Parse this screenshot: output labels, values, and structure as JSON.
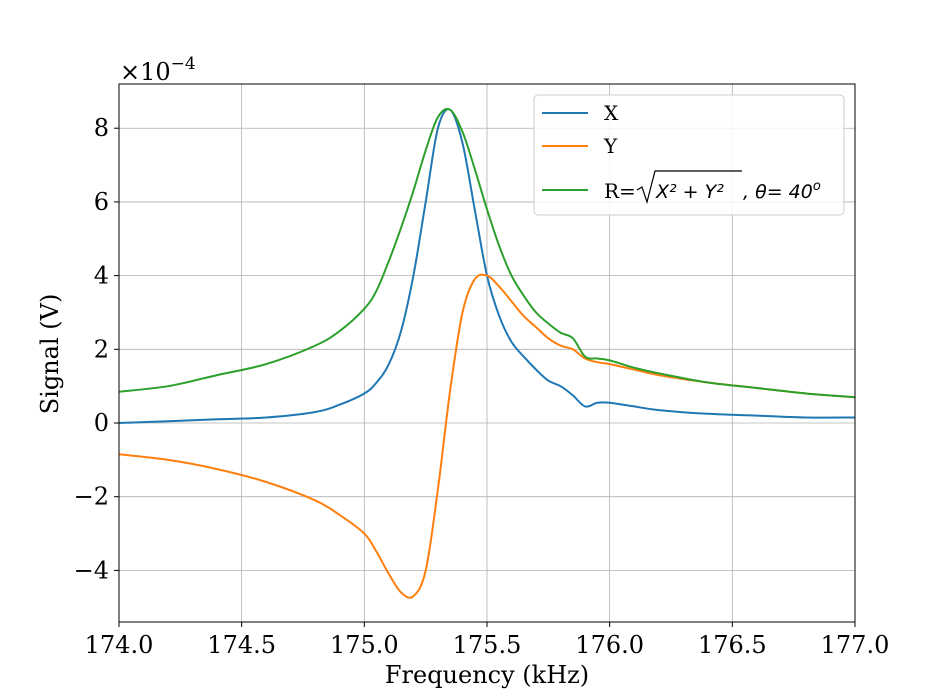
{
  "chart_data": {
    "type": "line",
    "xlabel": "Frequency (kHz)",
    "ylabel": "Signal (V)",
    "y_multiplier_label": "×10",
    "y_multiplier_exponent": "−4",
    "xlim": [
      174.0,
      177.0
    ],
    "ylim": [
      -5.4,
      9.2
    ],
    "x_ticks": [
      174.0,
      174.5,
      175.0,
      175.5,
      176.0,
      176.5,
      177.0
    ],
    "x_tick_labels": [
      "174.0",
      "174.5",
      "175.0",
      "175.5",
      "176.0",
      "176.5",
      "177.0"
    ],
    "y_ticks": [
      -4,
      -2,
      0,
      2,
      4,
      6,
      8
    ],
    "y_tick_labels": [
      "−4",
      "−2",
      "0",
      "2",
      "4",
      "6",
      "8"
    ],
    "grid": true,
    "legend_position": "top-right",
    "series": [
      {
        "name": "X",
        "color": "#1f77b4",
        "x": [
          174.0,
          174.2,
          174.4,
          174.6,
          174.8,
          174.9,
          175.0,
          175.05,
          175.1,
          175.15,
          175.2,
          175.25,
          175.3,
          175.35,
          175.4,
          175.45,
          175.5,
          175.55,
          175.6,
          175.65,
          175.7,
          175.75,
          175.8,
          175.85,
          175.9,
          175.95,
          176.0,
          176.1,
          176.2,
          176.4,
          176.6,
          176.8,
          177.0
        ],
        "values": [
          0.0,
          0.05,
          0.1,
          0.15,
          0.3,
          0.5,
          0.8,
          1.1,
          1.6,
          2.5,
          4.0,
          6.0,
          8.0,
          8.5,
          7.6,
          5.8,
          4.0,
          2.9,
          2.2,
          1.8,
          1.45,
          1.15,
          1.0,
          0.75,
          0.45,
          0.55,
          0.55,
          0.45,
          0.35,
          0.25,
          0.2,
          0.15,
          0.15
        ]
      },
      {
        "name": "Y",
        "color": "#ff7f0e",
        "x": [
          174.0,
          174.2,
          174.4,
          174.6,
          174.8,
          174.9,
          175.0,
          175.05,
          175.1,
          175.15,
          175.2,
          175.25,
          175.3,
          175.35,
          175.4,
          175.45,
          175.5,
          175.55,
          175.6,
          175.65,
          175.7,
          175.75,
          175.8,
          175.85,
          175.9,
          175.95,
          176.0,
          176.1,
          176.2,
          176.4,
          176.6,
          176.8,
          177.0
        ],
        "values": [
          -0.85,
          -1.0,
          -1.25,
          -1.6,
          -2.1,
          -2.5,
          -3.0,
          -3.5,
          -4.1,
          -4.6,
          -4.7,
          -4.0,
          -1.8,
          0.9,
          3.0,
          3.9,
          4.0,
          3.7,
          3.3,
          2.9,
          2.6,
          2.3,
          2.1,
          2.0,
          1.75,
          1.65,
          1.6,
          1.45,
          1.3,
          1.1,
          0.95,
          0.8,
          0.7
        ]
      },
      {
        "name": "R",
        "color": "#2ca02c",
        "x": [
          174.0,
          174.2,
          174.4,
          174.6,
          174.8,
          174.9,
          175.0,
          175.05,
          175.1,
          175.15,
          175.2,
          175.25,
          175.3,
          175.35,
          175.4,
          175.45,
          175.5,
          175.55,
          175.6,
          175.65,
          175.7,
          175.75,
          175.8,
          175.85,
          175.9,
          175.95,
          176.0,
          176.1,
          176.2,
          176.4,
          176.6,
          176.8,
          177.0
        ],
        "values": [
          0.85,
          1.0,
          1.3,
          1.6,
          2.1,
          2.5,
          3.1,
          3.6,
          4.4,
          5.3,
          6.3,
          7.4,
          8.3,
          8.5,
          7.9,
          6.9,
          5.8,
          4.8,
          4.0,
          3.45,
          3.0,
          2.7,
          2.45,
          2.3,
          1.8,
          1.75,
          1.7,
          1.5,
          1.35,
          1.1,
          0.95,
          0.8,
          0.7
        ]
      }
    ],
    "legend": [
      {
        "series": "X",
        "color": "#1f77b4",
        "label": "X"
      },
      {
        "series": "Y",
        "color": "#ff7f0e",
        "label": "Y"
      },
      {
        "series": "R",
        "color": "#2ca02c",
        "prefix": "R=",
        "radicand": "X² + Y²",
        "suffix": ", θ= 40",
        "suffix_sup": "o"
      }
    ]
  }
}
